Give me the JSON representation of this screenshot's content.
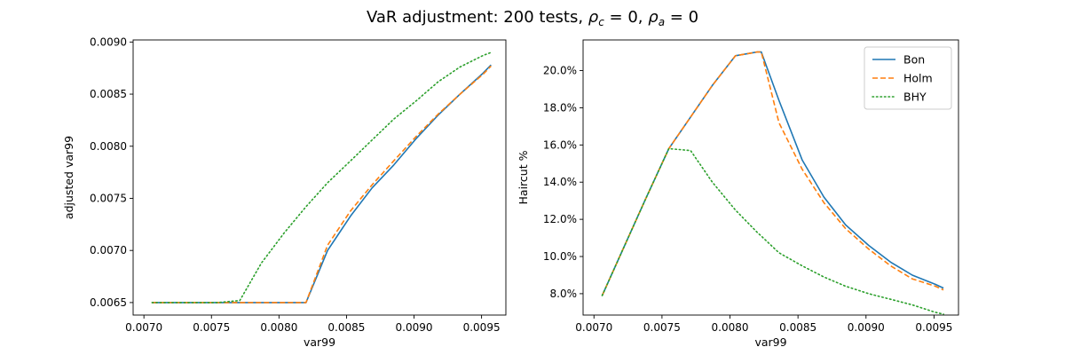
{
  "figure": {
    "title": "VaR adjustment: 200 tests, ",
    "title_rho_c": "ρ",
    "title_rho_c_sub": "c",
    "title_rho_c_value": " = 0, ",
    "title_rho_a": "ρ",
    "title_rho_a_sub": "a",
    "title_rho_a_value": " = 0"
  },
  "colors": {
    "Bon": "#1f77b4",
    "Holm": "#ff7f0e",
    "BHY": "#2ca02c"
  },
  "chart_data": [
    {
      "type": "line",
      "xlabel": "var99",
      "ylabel": "adjusted var99",
      "xlim": [
        0.00692,
        0.00968
      ],
      "ylim": [
        0.00638,
        0.00902
      ],
      "xticks": [
        0.007,
        0.0075,
        0.008,
        0.0085,
        0.009,
        0.0095
      ],
      "xtick_labels": [
        "0.0070",
        "0.0075",
        "0.0080",
        "0.0085",
        "0.0090",
        "0.0095"
      ],
      "yticks": [
        0.0065,
        0.007,
        0.0075,
        0.008,
        0.0085,
        0.009
      ],
      "ytick_labels": [
        "0.0065",
        "0.0070",
        "0.0075",
        "0.0080",
        "0.0085",
        "0.0090"
      ],
      "x": [
        0.00706,
        0.00722,
        0.00738,
        0.00755,
        0.00771,
        0.00787,
        0.00804,
        0.0082,
        0.00836,
        0.00853,
        0.00869,
        0.00885,
        0.00902,
        0.00918,
        0.00934,
        0.00951,
        0.00957
      ],
      "series": [
        {
          "name": "Bon",
          "style": "solid",
          "values": [
            0.0065,
            0.0065,
            0.0065,
            0.0065,
            0.0065,
            0.0065,
            0.0065,
            0.0065,
            0.007,
            0.00733,
            0.0076,
            0.00782,
            0.00808,
            0.0083,
            0.0085,
            0.0087,
            0.00878
          ]
        },
        {
          "name": "Holm",
          "style": "dashed",
          "values": [
            0.0065,
            0.0065,
            0.0065,
            0.0065,
            0.0065,
            0.0065,
            0.0065,
            0.0065,
            0.00705,
            0.00738,
            0.00763,
            0.00786,
            0.0081,
            0.00831,
            0.0085,
            0.00869,
            0.00877
          ]
        },
        {
          "name": "BHY",
          "style": "dotted",
          "values": [
            0.0065,
            0.0065,
            0.0065,
            0.0065,
            0.00652,
            0.00688,
            0.00717,
            0.00742,
            0.00765,
            0.00786,
            0.00806,
            0.00826,
            0.00844,
            0.00862,
            0.00876,
            0.00887,
            0.0089
          ]
        }
      ]
    },
    {
      "type": "line",
      "xlabel": "var99",
      "ylabel": "Haircut %",
      "xlim": [
        0.00692,
        0.00968
      ],
      "ylim": [
        0.0685,
        0.2165
      ],
      "xticks": [
        0.007,
        0.0075,
        0.008,
        0.0085,
        0.009,
        0.0095
      ],
      "xtick_labels": [
        "0.0070",
        "0.0075",
        "0.0080",
        "0.0085",
        "0.0090",
        "0.0095"
      ],
      "yticks": [
        0.08,
        0.1,
        0.12,
        0.14,
        0.16,
        0.18,
        0.2
      ],
      "ytick_labels": [
        "8.0%",
        "10.0%",
        "12.0%",
        "14.0%",
        "16.0%",
        "18.0%",
        "20.0%"
      ],
      "legend": {
        "placement": "top-right",
        "entries": [
          "Bon",
          "Holm",
          "BHY"
        ]
      },
      "x": [
        0.00706,
        0.00722,
        0.00738,
        0.00755,
        0.00771,
        0.00787,
        0.00804,
        0.0082,
        0.00823,
        0.00836,
        0.00853,
        0.00869,
        0.00885,
        0.00902,
        0.00918,
        0.00934,
        0.00951,
        0.00957
      ],
      "series": [
        {
          "name": "Bon",
          "style": "solid",
          "values": [
            0.079,
            0.105,
            0.131,
            0.158,
            0.175,
            0.192,
            0.208,
            0.21,
            0.21,
            0.184,
            0.152,
            0.132,
            0.117,
            0.106,
            0.097,
            0.09,
            0.085,
            0.083
          ]
        },
        {
          "name": "Holm",
          "style": "dashed",
          "values": [
            0.079,
            0.105,
            0.131,
            0.158,
            0.175,
            0.192,
            0.208,
            0.21,
            0.21,
            0.172,
            0.147,
            0.129,
            0.115,
            0.104,
            0.095,
            0.088,
            0.084,
            0.082
          ]
        },
        {
          "name": "BHY",
          "style": "dotted",
          "values": [
            0.079,
            0.105,
            0.131,
            0.158,
            0.157,
            0.14,
            0.125,
            0.113,
            0.111,
            0.102,
            0.095,
            0.089,
            0.084,
            0.08,
            0.077,
            0.074,
            0.07,
            0.069
          ]
        }
      ]
    }
  ]
}
